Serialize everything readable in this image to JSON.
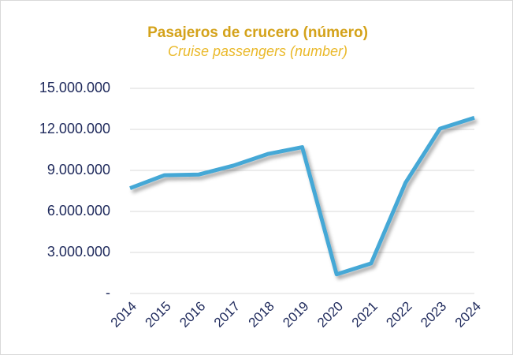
{
  "chart_data": {
    "type": "line",
    "title": "Pasajeros de crucero (número)",
    "subtitle": "Cruise passengers (number)",
    "categories": [
      "2014",
      "2015",
      "2016",
      "2017",
      "2018",
      "2019",
      "2020",
      "2021",
      "2022",
      "2023",
      "2024"
    ],
    "values": [
      7700000,
      8650000,
      8700000,
      9350000,
      10200000,
      10700000,
      1400000,
      2200000,
      8100000,
      12050000,
      12850000
    ],
    "color": "#45a8d6",
    "ylim": [
      0,
      15000000
    ],
    "yticks": [
      {
        "value": 0,
        "label": "-"
      },
      {
        "value": 3000000,
        "label": "3.000.000"
      },
      {
        "value": 6000000,
        "label": "6.000.000"
      },
      {
        "value": 9000000,
        "label": "9.000.000"
      },
      {
        "value": 12000000,
        "label": "12.000.000"
      },
      {
        "value": 15000000,
        "label": "15.000.000"
      }
    ],
    "grid": true
  }
}
